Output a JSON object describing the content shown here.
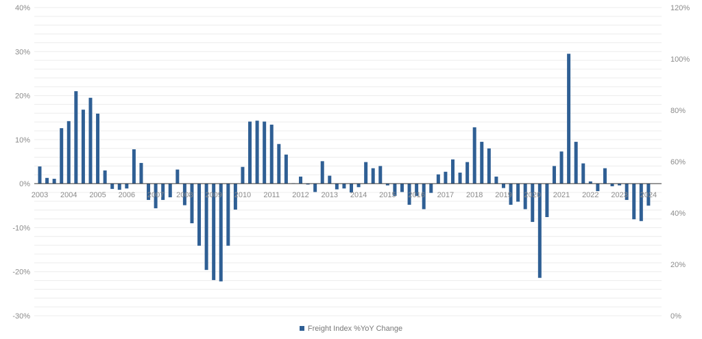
{
  "chart_data": {
    "type": "bar",
    "title": "",
    "xlabel": "",
    "ylabel": "",
    "frequency": "quarterly",
    "start": "2003 Q1",
    "year_labels": [
      "2003",
      "2004",
      "2005",
      "2006",
      "2007",
      "2008",
      "2009",
      "2010",
      "2011",
      "2012",
      "2013",
      "2014",
      "2015",
      "2016",
      "2017",
      "2018",
      "2019",
      "2020",
      "2021",
      "2022",
      "2023",
      "2024"
    ],
    "ylim": [
      -30,
      40
    ],
    "yticks": [
      "-30%",
      "-20%",
      "-10%",
      "0%",
      "10%",
      "20%",
      "30%",
      "40%"
    ],
    "y2lim": [
      0,
      120
    ],
    "y2ticks": [
      "0%",
      "20%",
      "40%",
      "60%",
      "80%",
      "100%",
      "120%"
    ],
    "grid": true,
    "legend_position": "bottom",
    "series": [
      {
        "name": "Freight Index %YoY Change",
        "color": "#2f5f94",
        "values": [
          3.9,
          1.3,
          1.1,
          12.6,
          14.2,
          21.0,
          16.8,
          19.5,
          15.9,
          3.0,
          -1.2,
          -1.4,
          -1.1,
          7.8,
          4.7,
          -3.7,
          -5.6,
          -3.7,
          -3.1,
          3.2,
          -4.9,
          -9.0,
          -14.1,
          -19.6,
          -21.9,
          -22.2,
          -14.1,
          -5.9,
          3.8,
          14.1,
          14.3,
          14.1,
          13.4,
          9.0,
          6.6,
          0.1,
          1.6,
          -0.2,
          -1.9,
          5.1,
          1.8,
          -1.3,
          -1.1,
          -2.0,
          -0.8,
          4.9,
          3.5,
          4.0,
          -0.4,
          -2.8,
          -1.9,
          -4.8,
          -2.8,
          -5.8,
          -2.1,
          2.1,
          2.7,
          5.5,
          2.5,
          4.9,
          12.8,
          9.5,
          8.0,
          1.6,
          -1.0,
          -4.8,
          -4.1,
          -5.8,
          -8.7,
          -21.4,
          -7.6,
          4.0,
          7.3,
          29.5,
          9.5,
          4.6,
          0.5,
          -1.7,
          3.5,
          -0.6,
          -0.4,
          -3.7,
          -8.1,
          -8.5,
          -5.0
        ]
      }
    ]
  }
}
